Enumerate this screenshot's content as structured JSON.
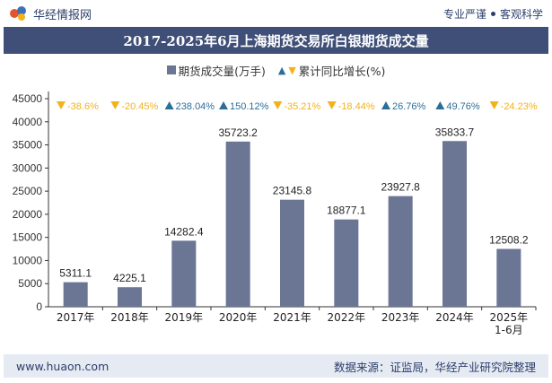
{
  "header": {
    "brand_name": "华经情报网",
    "tagline_left": "专业严谨",
    "tagline_right": "客观科学"
  },
  "footer": {
    "website": "www.huaon.com",
    "source": "数据来源：证监局，华经产业研究院整理"
  },
  "colors": {
    "bar": "#6b7594",
    "title_bg": "#3f4f78",
    "up_marker": "#2b6e99",
    "down_marker": "#f2b21c"
  },
  "chart_data": {
    "type": "bar",
    "title": "2017-2025年6月上海期货交易所白银期货成交量",
    "categories": [
      "2017年",
      "2018年",
      "2019年",
      "2020年",
      "2021年",
      "2022年",
      "2023年",
      "2024年",
      "2025年\n1-6月"
    ],
    "series": [
      {
        "name": "期货成交量(万手)",
        "values": [
          5311.1,
          4225.1,
          14282.4,
          35723.2,
          23145.8,
          18877.1,
          23927.8,
          35833.7,
          12508.2
        ],
        "labels": [
          "5311.1",
          "4225.1",
          "14282.4",
          "35723.2",
          "23145.8",
          "18877.1",
          "23927.8",
          "35833.7",
          "12508.2"
        ]
      },
      {
        "name": "累计同比增长(%)",
        "values": [
          -38.6,
          -20.45,
          238.04,
          150.12,
          -35.21,
          -18.44,
          26.76,
          49.76,
          -24.23
        ],
        "labels": [
          "-38.6%",
          "-20.45%",
          "238.04%",
          "150.12%",
          "-35.21%",
          "-18.44%",
          "26.76%",
          "49.76%",
          "-24.23%"
        ]
      }
    ],
    "ylim": [
      0,
      45000
    ],
    "yticks": [
      0,
      5000,
      10000,
      15000,
      20000,
      25000,
      30000,
      35000,
      40000,
      45000
    ],
    "legend_position": "top-center",
    "grid": false
  }
}
